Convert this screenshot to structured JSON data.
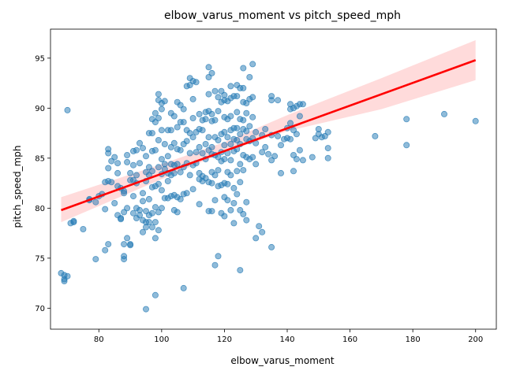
{
  "chart_data": {
    "type": "scatter",
    "title": "elbow_varus_moment vs pitch_speed_mph",
    "xlabel": "elbow_varus_moment",
    "ylabel": "pitch_speed_mph",
    "xlim": [
      64.6,
      206.6
    ],
    "ylim": [
      67.9,
      97.9
    ],
    "xticks": [
      80,
      100,
      120,
      140,
      160,
      180,
      200
    ],
    "yticks": [
      70,
      75,
      80,
      85,
      90,
      95
    ],
    "grid": false,
    "colors": {
      "points": "#1f77b4",
      "regression_line": "#ff0000",
      "confidence_band": "#ff9999"
    },
    "regression_line": {
      "x": [
        68,
        200
      ],
      "y": [
        79.8,
        94.8
      ]
    },
    "confidence_band": {
      "x": [
        68,
        100,
        120,
        140,
        170,
        200
      ],
      "lower": [
        78.6,
        82.9,
        85.6,
        87.7,
        89.9,
        92.8
      ],
      "upper": [
        81.1,
        84.4,
        86.6,
        89.3,
        93.0,
        96.8
      ]
    },
    "points": [
      [
        68,
        73.5
      ],
      [
        69,
        73.3
      ],
      [
        69,
        72.7
      ],
      [
        69,
        72.9
      ],
      [
        70,
        73.2
      ],
      [
        70,
        89.8
      ],
      [
        71,
        78.5
      ],
      [
        72,
        78.7
      ],
      [
        72,
        78.6
      ],
      [
        75,
        77.9
      ],
      [
        77,
        80.9
      ],
      [
        77,
        80.8
      ],
      [
        79,
        80.6
      ],
      [
        79,
        74.9
      ],
      [
        80,
        81.2
      ],
      [
        81,
        81.4
      ],
      [
        82,
        79.9
      ],
      [
        82,
        75.8
      ],
      [
        82,
        82.6
      ],
      [
        83,
        82.7
      ],
      [
        83,
        85.9
      ],
      [
        83,
        85.5
      ],
      [
        83,
        84.0
      ],
      [
        84,
        82.6
      ],
      [
        83,
        76.4
      ],
      [
        84,
        84.7
      ],
      [
        85,
        85.1
      ],
      [
        85,
        80.5
      ],
      [
        86,
        79.3
      ],
      [
        86,
        82.2
      ],
      [
        86,
        84.5
      ],
      [
        86,
        83.5
      ],
      [
        87,
        82.0
      ],
      [
        87,
        79.0
      ],
      [
        87,
        78.9
      ],
      [
        88,
        79.6
      ],
      [
        88,
        76.4
      ],
      [
        88,
        75.2
      ],
      [
        88,
        74.9
      ],
      [
        88,
        81.7
      ],
      [
        88,
        81.5
      ],
      [
        89,
        84.6
      ],
      [
        89,
        85.3
      ],
      [
        89,
        80.0
      ],
      [
        89,
        77.0
      ],
      [
        90,
        76.4
      ],
      [
        90,
        76.3
      ],
      [
        90,
        83.5
      ],
      [
        90,
        82.8
      ],
      [
        91,
        85.7
      ],
      [
        91,
        84.3
      ],
      [
        91,
        82.8
      ],
      [
        91,
        81.2
      ],
      [
        91,
        79.5
      ],
      [
        92,
        85.8
      ],
      [
        92,
        83.3
      ],
      [
        92,
        82.5
      ],
      [
        92,
        80.0
      ],
      [
        92,
        79.0
      ],
      [
        93,
        86.5
      ],
      [
        93,
        84.5
      ],
      [
        93,
        79.8
      ],
      [
        93,
        79.3
      ],
      [
        94,
        86.0
      ],
      [
        94,
        81.5
      ],
      [
        94,
        80.7
      ],
      [
        94,
        78.8
      ],
      [
        94,
        77.6
      ],
      [
        95,
        85.2
      ],
      [
        95,
        83.6
      ],
      [
        95,
        82.7
      ],
      [
        95,
        79.7
      ],
      [
        95,
        78.6
      ],
      [
        95,
        78.1
      ],
      [
        95,
        69.9
      ],
      [
        96,
        87.5
      ],
      [
        96,
        84.1
      ],
      [
        96,
        83.3
      ],
      [
        96,
        80.9
      ],
      [
        96,
        79.3
      ],
      [
        96,
        78.6
      ],
      [
        97,
        88.9
      ],
      [
        97,
        87.5
      ],
      [
        97,
        85.7
      ],
      [
        97,
        83.7
      ],
      [
        97,
        82.1
      ],
      [
        97,
        79.5
      ],
      [
        97,
        78.1
      ],
      [
        98,
        89.5
      ],
      [
        98,
        88.6
      ],
      [
        98,
        85.8
      ],
      [
        98,
        82.2
      ],
      [
        98,
        80.1
      ],
      [
        98,
        78.6
      ],
      [
        98,
        77.0
      ],
      [
        98,
        71.3
      ],
      [
        99,
        91.4
      ],
      [
        99,
        90.8
      ],
      [
        99,
        89.0
      ],
      [
        99,
        86.8
      ],
      [
        99,
        84.1
      ],
      [
        99,
        82.4
      ],
      [
        99,
        79.6
      ],
      [
        99,
        77.8
      ],
      [
        100,
        90.5
      ],
      [
        100,
        89.9
      ],
      [
        100,
        87.8
      ],
      [
        100,
        84.9
      ],
      [
        100,
        83.4
      ],
      [
        100,
        81.8
      ],
      [
        100,
        80.0
      ],
      [
        101,
        90.7
      ],
      [
        101,
        86.4
      ],
      [
        101,
        84.4
      ],
      [
        101,
        83.9
      ],
      [
        101,
        81.0
      ],
      [
        102,
        87.8
      ],
      [
        102,
        85.2
      ],
      [
        102,
        83.5
      ],
      [
        102,
        82.7
      ],
      [
        102,
        81.0
      ],
      [
        103,
        89.5
      ],
      [
        103,
        87.8
      ],
      [
        103,
        86.1
      ],
      [
        103,
        84.4
      ],
      [
        103,
        83.3
      ],
      [
        103,
        81.2
      ],
      [
        104,
        89.2
      ],
      [
        104,
        86.5
      ],
      [
        104,
        84.3
      ],
      [
        104,
        83.5
      ],
      [
        104,
        81.3
      ],
      [
        104,
        79.8
      ],
      [
        105,
        90.6
      ],
      [
        105,
        88.1
      ],
      [
        105,
        85.9
      ],
      [
        105,
        84.4
      ],
      [
        105,
        81.1
      ],
      [
        105,
        79.6
      ],
      [
        106,
        90.3
      ],
      [
        106,
        88.6
      ],
      [
        106,
        85.8
      ],
      [
        106,
        83.6
      ],
      [
        106,
        80.9
      ],
      [
        107,
        89.9
      ],
      [
        107,
        88.6
      ],
      [
        107,
        86.4
      ],
      [
        107,
        84.1
      ],
      [
        107,
        81.4
      ],
      [
        107,
        72.0
      ],
      [
        108,
        92.2
      ],
      [
        108,
        87.8
      ],
      [
        108,
        86.7
      ],
      [
        108,
        84.5
      ],
      [
        108,
        81.5
      ],
      [
        109,
        93.0
      ],
      [
        109,
        92.3
      ],
      [
        109,
        87.5
      ],
      [
        109,
        85.5
      ],
      [
        109,
        83.3
      ],
      [
        110,
        92.7
      ],
      [
        110,
        90.9
      ],
      [
        110,
        89.0
      ],
      [
        110,
        87.1
      ],
      [
        110,
        84.3
      ],
      [
        110,
        81.9
      ],
      [
        111,
        92.6
      ],
      [
        111,
        87.6
      ],
      [
        111,
        85.6
      ],
      [
        111,
        84.5
      ],
      [
        112,
        89.4
      ],
      [
        112,
        87.9
      ],
      [
        112,
        86.1
      ],
      [
        112,
        83.5
      ],
      [
        112,
        82.9
      ],
      [
        112,
        80.4
      ],
      [
        113,
        88.8
      ],
      [
        113,
        87.8
      ],
      [
        113,
        85.5
      ],
      [
        113,
        83.2
      ],
      [
        113,
        82.7
      ],
      [
        114,
        89.6
      ],
      [
        114,
        88.9
      ],
      [
        114,
        86.4
      ],
      [
        114,
        84.9
      ],
      [
        114,
        83.0
      ],
      [
        115,
        94.1
      ],
      [
        115,
        93.1
      ],
      [
        115,
        91.4
      ],
      [
        115,
        89.7
      ],
      [
        115,
        87.1
      ],
      [
        115,
        85.8
      ],
      [
        115,
        82.6
      ],
      [
        115,
        79.7
      ],
      [
        116,
        93.5
      ],
      [
        116,
        89.4
      ],
      [
        116,
        88.7
      ],
      [
        116,
        86.1
      ],
      [
        116,
        85.4
      ],
      [
        116,
        83.6
      ],
      [
        116,
        82.5
      ],
      [
        116,
        79.7
      ],
      [
        117,
        91.7
      ],
      [
        117,
        88.8
      ],
      [
        117,
        87.1
      ],
      [
        117,
        85.3
      ],
      [
        117,
        83.3
      ],
      [
        117,
        80.8
      ],
      [
        117,
        74.3
      ],
      [
        118,
        91.1
      ],
      [
        118,
        89.7
      ],
      [
        118,
        86.8
      ],
      [
        118,
        85.1
      ],
      [
        118,
        83.8
      ],
      [
        118,
        82.2
      ],
      [
        118,
        75.2
      ],
      [
        119,
        91.7
      ],
      [
        119,
        90.6
      ],
      [
        119,
        87.4
      ],
      [
        119,
        85.6
      ],
      [
        119,
        84.7
      ],
      [
        119,
        82.3
      ],
      [
        119,
        79.5
      ],
      [
        120,
        91.3
      ],
      [
        120,
        90.8
      ],
      [
        120,
        89.1
      ],
      [
        120,
        87.6
      ],
      [
        120,
        86.3
      ],
      [
        120,
        84.9
      ],
      [
        120,
        82.5
      ],
      [
        120,
        81.1
      ],
      [
        120,
        79.2
      ],
      [
        121,
        90.7
      ],
      [
        121,
        88.9
      ],
      [
        121,
        87.1
      ],
      [
        121,
        85.5
      ],
      [
        121,
        83.6
      ],
      [
        121,
        82.4
      ],
      [
        121,
        80.8
      ],
      [
        122,
        92.2
      ],
      [
        122,
        91.0
      ],
      [
        122,
        89.2
      ],
      [
        122,
        87.8
      ],
      [
        122,
        86.4
      ],
      [
        122,
        84.8
      ],
      [
        122,
        83.3
      ],
      [
        122,
        79.8
      ],
      [
        123,
        91.2
      ],
      [
        123,
        88.0
      ],
      [
        123,
        86.9
      ],
      [
        123,
        85.7
      ],
      [
        123,
        82.0
      ],
      [
        123,
        80.5
      ],
      [
        123,
        78.5
      ],
      [
        124,
        92.3
      ],
      [
        124,
        91.2
      ],
      [
        124,
        89.6
      ],
      [
        124,
        88.0
      ],
      [
        124,
        86.8
      ],
      [
        124,
        85.9
      ],
      [
        124,
        83.7
      ],
      [
        124,
        81.4
      ],
      [
        125,
        92.0
      ],
      [
        125,
        88.9
      ],
      [
        125,
        87.4
      ],
      [
        125,
        86.4
      ],
      [
        125,
        84.4
      ],
      [
        125,
        82.6
      ],
      [
        125,
        79.8
      ],
      [
        125,
        73.8
      ],
      [
        126,
        94.0
      ],
      [
        126,
        92.0
      ],
      [
        126,
        90.6
      ],
      [
        126,
        88.8
      ],
      [
        126,
        87.9
      ],
      [
        126,
        85.3
      ],
      [
        126,
        83.8
      ],
      [
        126,
        79.4
      ],
      [
        127,
        90.5
      ],
      [
        127,
        89.5
      ],
      [
        127,
        87.7
      ],
      [
        127,
        86.9
      ],
      [
        127,
        85.1
      ],
      [
        127,
        80.6
      ],
      [
        127,
        78.8
      ],
      [
        128,
        93.1
      ],
      [
        128,
        90.9
      ],
      [
        128,
        88.2
      ],
      [
        128,
        86.7
      ],
      [
        128,
        84.9
      ],
      [
        129,
        94.4
      ],
      [
        129,
        91.1
      ],
      [
        129,
        89.1
      ],
      [
        129,
        87.0
      ],
      [
        129,
        85.1
      ],
      [
        130,
        87.6
      ],
      [
        130,
        86.5
      ],
      [
        130,
        84.4
      ],
      [
        130,
        77.0
      ],
      [
        131,
        78.2
      ],
      [
        132,
        87.3
      ],
      [
        132,
        85.6
      ],
      [
        132,
        77.6
      ],
      [
        133,
        87.9
      ],
      [
        133,
        86.1
      ],
      [
        134,
        85.4
      ],
      [
        135,
        91.2
      ],
      [
        135,
        90.8
      ],
      [
        135,
        87.3
      ],
      [
        135,
        84.8
      ],
      [
        135,
        76.1
      ],
      [
        136,
        85.2
      ],
      [
        137,
        90.8
      ],
      [
        137,
        87.2
      ],
      [
        138,
        86.3
      ],
      [
        138,
        83.5
      ],
      [
        139,
        86.9
      ],
      [
        140,
        88.0
      ],
      [
        140,
        87.0
      ],
      [
        141,
        90.4
      ],
      [
        141,
        89.9
      ],
      [
        141,
        88.5
      ],
      [
        141,
        86.9
      ],
      [
        142,
        90.0
      ],
      [
        142,
        87.8
      ],
      [
        142,
        85.3
      ],
      [
        142,
        83.7
      ],
      [
        143,
        90.2
      ],
      [
        143,
        87.4
      ],
      [
        143,
        84.9
      ],
      [
        144,
        90.4
      ],
      [
        144,
        89.2
      ],
      [
        144,
        85.8
      ],
      [
        145,
        90.4
      ],
      [
        145,
        84.8
      ],
      [
        148,
        85.1
      ],
      [
        149,
        87.0
      ],
      [
        150,
        87.9
      ],
      [
        150,
        87.4
      ],
      [
        151,
        87.1
      ],
      [
        152,
        87.2
      ],
      [
        153,
        87.6
      ],
      [
        153,
        86.0
      ],
      [
        153,
        85.0
      ],
      [
        168,
        87.2
      ],
      [
        178,
        88.9
      ],
      [
        178,
        86.3
      ],
      [
        190,
        89.4
      ],
      [
        200,
        88.7
      ]
    ]
  }
}
